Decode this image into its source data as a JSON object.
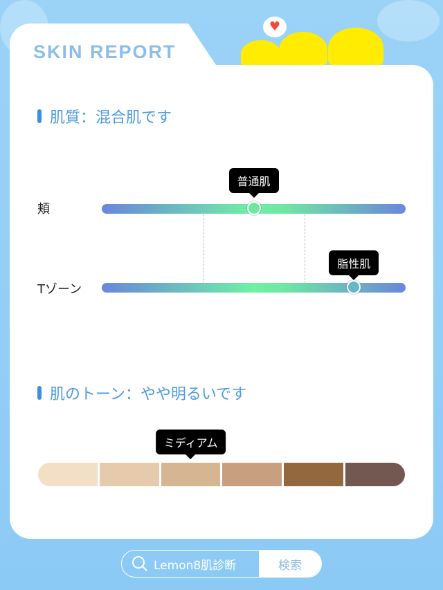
{
  "header": {
    "title": "SKIN REPORT"
  },
  "skin_type": {
    "heading": "肌質：混合肌です",
    "rows": [
      {
        "label": "頬",
        "value_label": "普通肌",
        "position": 0.5,
        "knob_color": "#6ee8a0"
      },
      {
        "label": "Tゾーン",
        "value_label": "脂性肌",
        "position": 0.83,
        "knob_color": "#64b8c8"
      }
    ]
  },
  "skin_tone": {
    "heading": "肌のトーン：やや明るいです",
    "selected_label": "ミディアム",
    "selected_index": 2,
    "swatches": [
      "#f2dfc6",
      "#e5cbac",
      "#d6b592",
      "#c9a07f",
      "#94683f",
      "#725851"
    ]
  },
  "search": {
    "query": "Lemon8肌診断",
    "button_label": "検索"
  },
  "colors": {
    "accent": "#3a8ee8",
    "background": "#8ccaf6"
  }
}
